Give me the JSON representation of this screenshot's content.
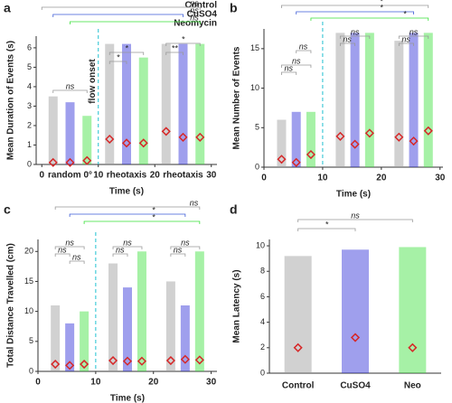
{
  "chart_data": [
    {
      "type": "strip",
      "letter": "a",
      "ylabel": "Mean Duration of Events (s)",
      "xlabel": "Time (s)",
      "xlim": [
        -1,
        31
      ],
      "xticks": [
        0,
        10,
        20,
        30
      ],
      "ylim": [
        0,
        6.6
      ],
      "yticks": [
        0,
        1,
        2,
        3,
        4,
        5,
        6
      ],
      "mean_color": "#d62728",
      "series": [
        {
          "name": "Control",
          "color": "#9a9a9a",
          "x": [
            2,
            12,
            22
          ],
          "values": [
            0.1,
            1.3,
            1.7
          ],
          "max_values": [
            3.5,
            6.2,
            6.2
          ]
        },
        {
          "name": "CuSO4",
          "color": "#2b2bd6",
          "x": [
            5,
            15,
            25
          ],
          "values": [
            0.1,
            1.1,
            1.4
          ],
          "max_values": [
            3.2,
            6.2,
            6.2
          ]
        },
        {
          "name": "Neomycin",
          "color": "#39e039",
          "x": [
            8,
            18,
            28
          ],
          "values": [
            0.2,
            1.1,
            1.4
          ],
          "max_values": [
            2.5,
            5.5,
            6.2
          ]
        }
      ],
      "labels": [
        {
          "text": "random 0°",
          "color": "#888888"
        },
        {
          "text": "rheotaxis",
          "color": "#f0a020"
        },
        {
          "text": "rheotaxis",
          "color": "#f0a020"
        },
        {
          "text": "flow onset",
          "color": "#20c0d0"
        }
      ],
      "significance": [
        "ns",
        "ns",
        "ns",
        "*",
        "*",
        "*",
        "**",
        "ns"
      ]
    },
    {
      "type": "strip",
      "letter": "b",
      "ylabel": "Mean Number of Events",
      "xlabel": "Time (s)",
      "xlim": [
        0,
        30.5
      ],
      "xticks": [
        0,
        10,
        20,
        30
      ],
      "ylim": [
        0,
        17.5
      ],
      "yticks": [
        0,
        5,
        10,
        15
      ],
      "mean_color": "#d62728",
      "series": [
        {
          "color": "#9a9a9a",
          "x": [
            3,
            13,
            23
          ],
          "values": [
            1.0,
            3.9,
            3.8
          ],
          "max_values": [
            6,
            17,
            16
          ]
        },
        {
          "color": "#2b2bd6",
          "x": [
            5.5,
            15.5,
            25.5
          ],
          "values": [
            0.6,
            2.9,
            3.3
          ],
          "max_values": [
            7,
            17,
            17
          ]
        },
        {
          "color": "#39e039",
          "x": [
            8,
            18,
            28
          ],
          "values": [
            1.6,
            4.3,
            4.6
          ],
          "max_values": [
            7,
            17,
            17
          ]
        }
      ],
      "labels": [],
      "significance": [
        "*",
        "*",
        "*",
        "ns",
        "ns",
        "ns",
        "ns",
        "ns",
        "ns",
        "ns"
      ]
    },
    {
      "type": "strip",
      "letter": "c",
      "ylabel": "Total Distance Travelled (cm)",
      "xlabel": "Time (s)",
      "xlim": [
        0,
        31
      ],
      "xticks": [
        0,
        10,
        20,
        30
      ],
      "ylim": [
        0,
        22
      ],
      "yticks": [
        0,
        5,
        10,
        15,
        20
      ],
      "mean_color": "#d62728",
      "series": [
        {
          "color": "#9a9a9a",
          "x": [
            3,
            13,
            23
          ],
          "values": [
            1.2,
            1.8,
            1.8
          ],
          "max_values": [
            11,
            18,
            15
          ]
        },
        {
          "color": "#2b2bd6",
          "x": [
            5.5,
            15.5,
            25.5
          ],
          "values": [
            1.0,
            1.7,
            2.0
          ],
          "max_values": [
            8,
            14,
            11
          ]
        },
        {
          "color": "#39e039",
          "x": [
            8,
            18,
            28
          ],
          "values": [
            1.2,
            1.7,
            1.9
          ],
          "max_values": [
            10,
            20,
            20
          ]
        }
      ],
      "labels": [],
      "significance": [
        "ns",
        "*",
        "*",
        "ns",
        "ns",
        "ns",
        "ns",
        "ns",
        "ns",
        "ns"
      ]
    },
    {
      "type": "category-strip",
      "letter": "d",
      "ylabel": "Mean Latency (s)",
      "categories": [
        "Control",
        "CuSO4",
        "Neo"
      ],
      "colors": [
        "#9a9a9a",
        "#2b2bd6",
        "#39e039"
      ],
      "values": [
        2.0,
        2.8,
        2.0
      ],
      "max_values": [
        9.2,
        9.7,
        9.9
      ],
      "ylim": [
        0,
        10.5
      ],
      "yticks": [
        0,
        2,
        4,
        6,
        8,
        10
      ],
      "mean_color": "#d62728",
      "significance": [
        "ns",
        "*"
      ]
    }
  ]
}
